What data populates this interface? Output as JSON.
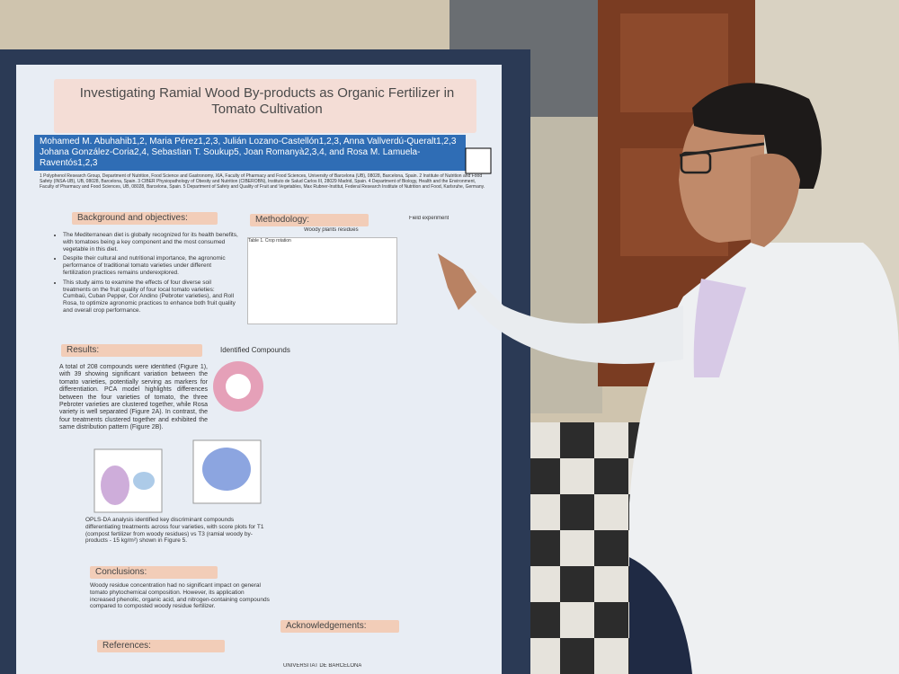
{
  "poster": {
    "title": "Investigating Ramial Wood By-products as Organic Fertilizer in Tomato Cultivation",
    "authors": "Mohamed M. Abuhahib1,2, Maria Pérez1,2,3, Julián Lozano-Castellón1,2,3, Anna Vallverdú-Queralt1,2,3 Johana González-Coria2,4, Sebastian T. Soukup5, Joan Romanyà2,3,4, and Rosa M. Lamuela-Raventós1,2,3",
    "affiliations": "1 Polyphenol Research Group, Department of Nutrition, Food Science and Gastronomy, XIA, Faculty of Pharmacy and Food Sciences, University of Barcelona (UB), 08028, Barcelona, Spain. 2 Institute of Nutrition and Food Safety (INSA-UB), UB, 08028, Barcelona, Spain. 3 CIBER Physiopathology of Obesity and Nutrition (CIBEROBN), Instituto de Salud Carlos III, 28029 Madrid, Spain. 4 Department of Biology, Health and the Environment, Faculty of Pharmacy and Food Sciences, UB, 08028, Barcelona, Spain. 5 Department of Safety and Quality of Fruit and Vegetables, Max Rubner-Institut, Federal Research Institute of Nutrition and Food, Karlsruhe, Germany.",
    "background": {
      "heading": "Background and objectives:",
      "bullets": [
        "The Mediterranean diet is globally recognized for its health benefits, with tomatoes being a key component and the most consumed vegetable in this diet.",
        "Despite their cultural and nutritional importance, the agronomic performance of traditional tomato varieties under different fertilization practices remains underexplored.",
        "This study aims to examine the effects of four diverse soil treatments on the fruit quality of four local tomato varieties: Cumbaü, Cuban Pepper, Cor Andino (Pebroter varieties), and Roll Rosa, to optimize agronomic practices to enhance both fruit quality and overall crop performance."
      ]
    },
    "methodology": {
      "heading": "Methodology:",
      "table_title": "Table 1. Crop rotation",
      "residues": "Woody plants residues",
      "field": "Field experiment"
    },
    "results": {
      "heading": "Results:",
      "text": "A total of 208 compounds were identified (Figure 1), with 39 showing significant variation between the tomato varieties, potentially serving as markers for differentiation. PCA model highlights differences between the four varieties of tomato, the three Pebroter varieties are clustered together, while Rosa variety is well separated (Figure 2A). In contrast, the four treatments clustered together and exhibited the same distribution pattern (Figure 2B).",
      "compounds": "Identified Compounds",
      "opls": "OPLS-DA analysis identified key discriminant compounds differentiating treatments across four varieties, with score plots for T1 (compost fertilizer from woody residues) vs T3 (ramial woody by-products - 15 kg/m²) shown in Figure 5."
    },
    "conclusions": {
      "heading": "Conclusions:",
      "text": "Woody residue concentration had no significant impact on general tomato phytochemical composition. However, its application increased phenolic, organic acid, and nitrogen-containing compounds compared to composted woody residue fertilizer."
    },
    "references": {
      "heading": "References:"
    },
    "acknowledgements": {
      "heading": "Acknowledgements:"
    },
    "university": "UNIVERSITAT DE BARCELONA"
  }
}
